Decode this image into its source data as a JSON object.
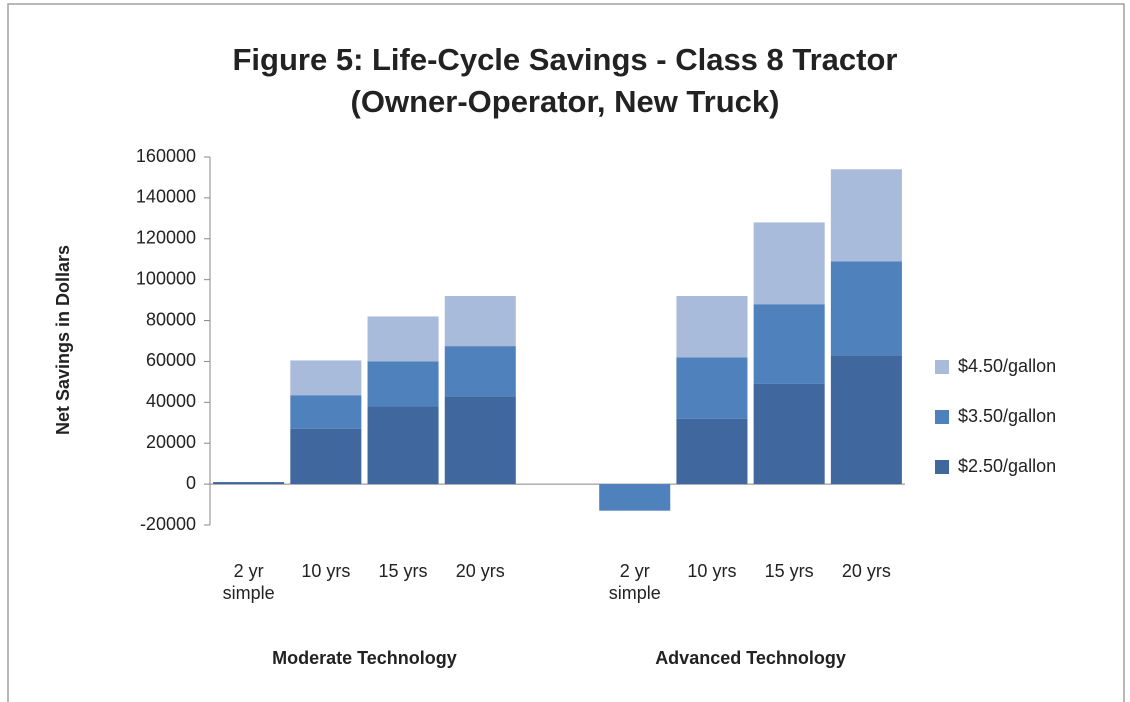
{
  "chart_data": {
    "type": "stacked_bar",
    "title": "Figure 5: Life-Cycle Savings - Class 8 Tractor",
    "subtitle": "(Owner-Operator, New Truck)",
    "y_label": "Net Savings in Dollars",
    "categories": [
      "2 yr simple",
      "10 yrs",
      "15 yrs",
      "20 yrs",
      null,
      "2 yr simple",
      "10 yrs",
      "15 yrs",
      "20 yrs"
    ],
    "groups": [
      "Moderate Technology",
      "Advanced Technology"
    ],
    "series": [
      {
        "name": "$2.50/gallon",
        "color": "#41689e",
        "values": [
          1000,
          27000,
          38000,
          43000,
          null,
          0,
          32000,
          49000,
          63000
        ]
      },
      {
        "name": "$3.50/gallon",
        "color": "#4f81bd",
        "values": [
          0,
          16500,
          22000,
          24500,
          null,
          -13000,
          30000,
          39000,
          46000
        ]
      },
      {
        "name": "$4.50/gallon",
        "color": "#a9bbdb",
        "values": [
          0,
          17000,
          22000,
          24500,
          null,
          0,
          30000,
          40000,
          45000
        ]
      }
    ],
    "ylim": [
      -20000,
      160000
    ],
    "yticks": [
      -20000,
      0,
      20000,
      40000,
      60000,
      80000,
      100000,
      120000,
      140000,
      160000
    ],
    "grid": false,
    "legend": "right"
  }
}
